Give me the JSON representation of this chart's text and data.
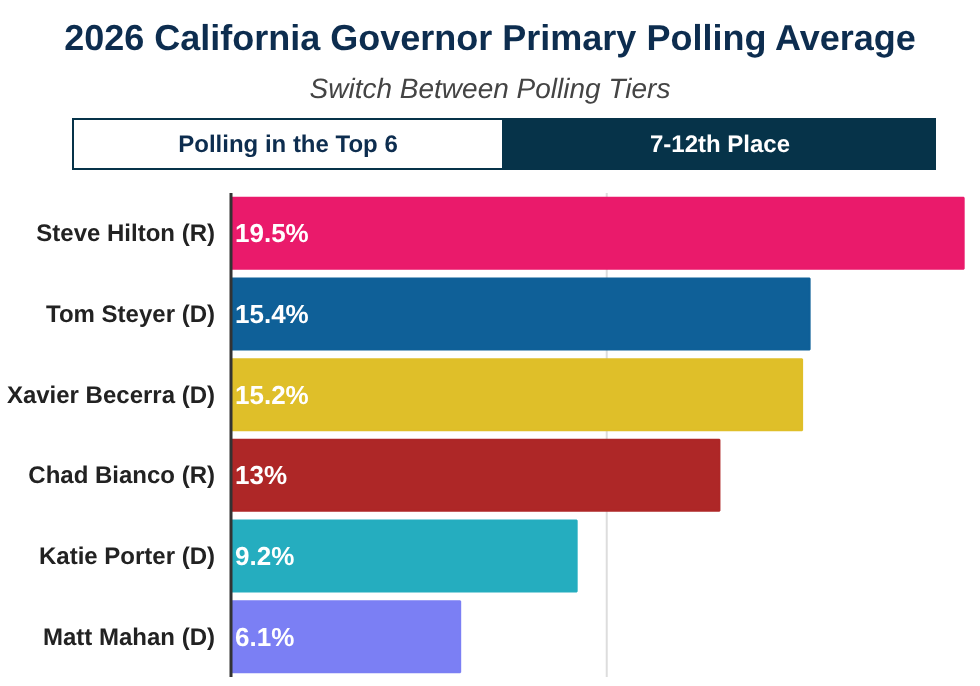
{
  "chart_data": {
    "type": "bar",
    "orientation": "horizontal",
    "title": "2026 California Governor Primary Polling Average",
    "subtitle": "Switch Between Polling Tiers",
    "annotations": [
      "Polling in the Top 6",
      "7-12th Place"
    ],
    "categories": [
      "Steve Hilton (R)",
      "Tom Steyer (D)",
      "Xavier Becerra (D)",
      "Chad Bianco (R)",
      "Katie Porter (D)",
      "Matt Mahan (D)"
    ],
    "values": [
      19.5,
      15.4,
      15.2,
      13,
      9.2,
      6.1
    ],
    "colors": [
      "#ea1a6b",
      "#0f6098",
      "#dfbf29",
      "#ae2727",
      "#25adbf",
      "#7b7ff4"
    ],
    "value_labels": [
      "19.5%",
      "15.4%",
      "15.2%",
      "13%",
      "9.2%",
      "6.1%"
    ],
    "ref_lines": [
      {
        "axis": "x",
        "value": 10,
        "color": "#dddddd"
      }
    ],
    "tick_labels": "y"
  }
}
